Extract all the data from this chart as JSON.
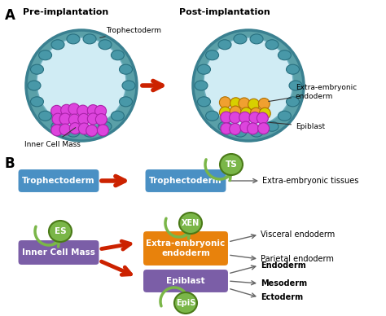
{
  "bg_color": "#ffffff",
  "label_A": "A",
  "label_B": "B",
  "pre_implant_label": "Pre-implantation",
  "post_implant_label": "Post-implantation",
  "trophectoderm_label": "Trophectoderm",
  "inner_cell_mass_label": "Inner Cell Mass",
  "extra_embryonic_label": "Extra-embryonic\nendoderm",
  "epiblast_label": "Epiblast",
  "box_trophectoderm_left": "Trophectoderm",
  "box_trophectoderm_right": "Trophectoderm",
  "box_inner_cell_mass": "Inner Cell Mass",
  "box_extra_embryonic": "Extra-embryonic\nendoderm",
  "box_epiblast": "Epiblast",
  "ts_label": "TS",
  "xen_label": "XEN",
  "es_label": "ES",
  "epis_label": "EpiS",
  "extra_embryonic_tissues": "Extra-embryonic tissues",
  "visceral_endoderm": "Visceral endoderm",
  "parietal_endoderm": "Parietal endoderm",
  "endoderm": "Endoderm",
  "mesoderm": "Mesoderm",
  "ectoderm": "Ectoderm",
  "color_blue_box": "#4a90c4",
  "color_orange_box": "#e8820c",
  "color_purple_box": "#7b5ea7",
  "color_green_circle": "#7ab648",
  "color_green_dark": "#4a7a18",
  "color_red_arrow": "#cc2200",
  "color_gray_arrow": "#666666",
  "color_teal_outer": "#5aa0a8",
  "color_teal_outer2": "#4888a0",
  "color_teal_inner": "#b8dce8",
  "color_teal_inner2": "#d0ecf4",
  "color_purple_cells": "#dd44dd",
  "color_orange_cells": "#f0a030",
  "color_yellow_cells": "#d8d000"
}
